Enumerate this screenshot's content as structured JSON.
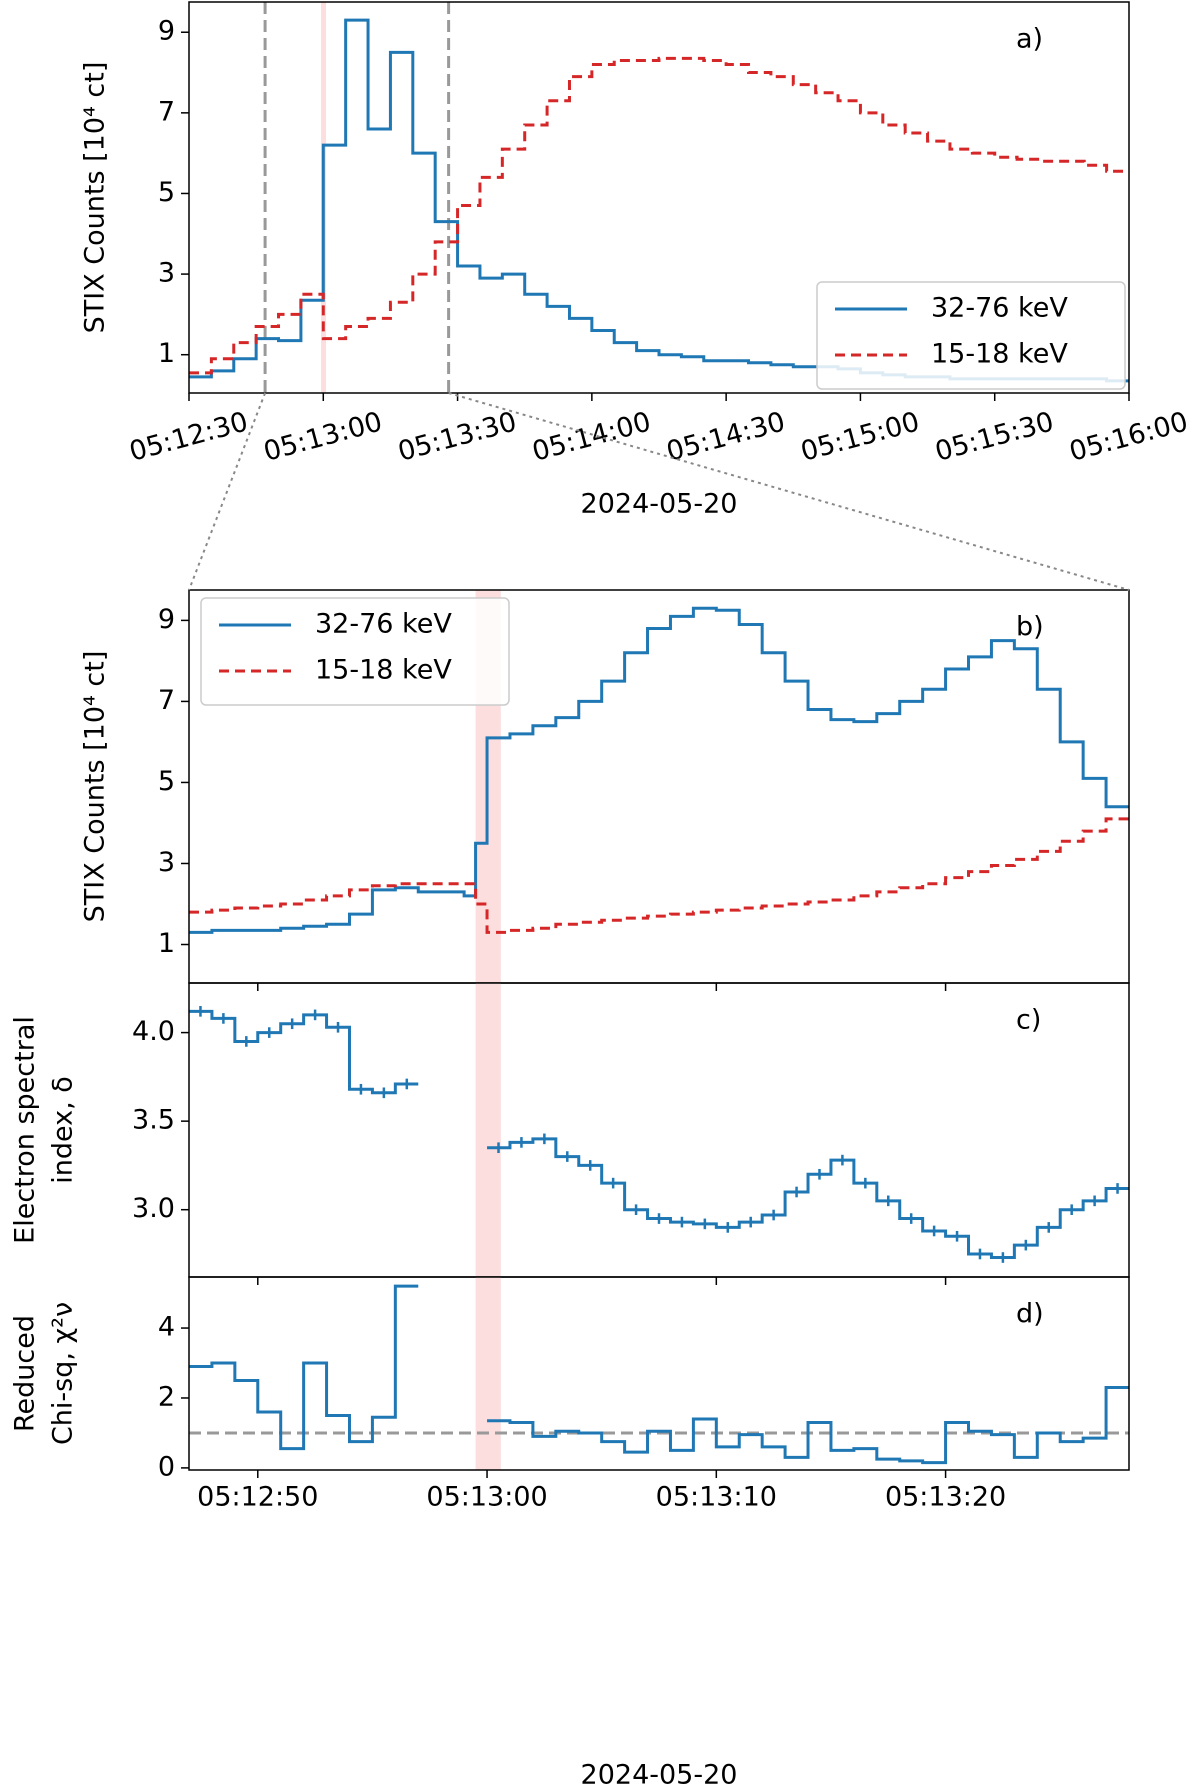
{
  "chart_data": [
    {
      "type": "step",
      "panel_label": "a)",
      "ylabel": "STIX Counts [10⁴ ct]",
      "xlabel": "2024-05-20",
      "x": [
        "05:12:30",
        "05:12:35",
        "05:12:40",
        "05:12:45",
        "05:12:50",
        "05:12:55",
        "05:13:00",
        "05:13:05",
        "05:13:10",
        "05:13:15",
        "05:13:20",
        "05:13:25",
        "05:13:30",
        "05:13:35",
        "05:13:40",
        "05:13:45",
        "05:13:50",
        "05:13:55",
        "05:14:00",
        "05:14:05",
        "05:14:10",
        "05:14:15",
        "05:14:20",
        "05:14:25",
        "05:14:30",
        "05:14:35",
        "05:14:40",
        "05:14:45",
        "05:14:50",
        "05:14:55",
        "05:15:00",
        "05:15:05",
        "05:15:10",
        "05:15:15",
        "05:15:20",
        "05:15:25",
        "05:15:30",
        "05:15:35",
        "05:15:40",
        "05:15:45",
        "05:15:50",
        "05:15:55"
      ],
      "series": [
        {
          "name": "32-76 keV",
          "color": "#1f77b4",
          "dashed": false,
          "values": [
            0.45,
            0.6,
            0.9,
            1.4,
            1.35,
            2.35,
            6.2,
            9.3,
            6.6,
            8.5,
            6.0,
            4.3,
            3.2,
            2.9,
            3.0,
            2.5,
            2.2,
            1.9,
            1.6,
            1.3,
            1.1,
            1.0,
            0.95,
            0.85,
            0.85,
            0.8,
            0.75,
            0.7,
            0.7,
            0.65,
            0.55,
            0.5,
            0.45,
            0.45,
            0.4,
            0.4,
            0.4,
            0.4,
            0.4,
            0.4,
            0.4,
            0.35
          ]
        },
        {
          "name": "15-18 keV",
          "color": "#d62728",
          "dashed": true,
          "values": [
            0.55,
            0.9,
            1.3,
            1.7,
            2.0,
            2.5,
            1.4,
            1.7,
            1.9,
            2.3,
            3.0,
            3.8,
            4.7,
            5.4,
            6.1,
            6.7,
            7.3,
            7.9,
            8.2,
            8.3,
            8.3,
            8.35,
            8.35,
            8.3,
            8.2,
            8.0,
            7.9,
            7.7,
            7.5,
            7.3,
            7.0,
            6.7,
            6.5,
            6.3,
            6.1,
            6.0,
            5.9,
            5.85,
            5.8,
            5.8,
            5.7,
            5.55
          ]
        }
      ],
      "xlim": [
        "05:12:30",
        "05:16:00"
      ],
      "xticks": [
        "05:12:30",
        "05:13:00",
        "05:13:30",
        "05:14:00",
        "05:14:30",
        "05:15:00",
        "05:15:30",
        "05:16:00"
      ],
      "ylim": [
        0.05,
        9.75
      ],
      "yticks": [
        1,
        3,
        5,
        7,
        9
      ],
      "highlight": [
        "05:12:59.5",
        "05:13:00.6"
      ],
      "vlines": [
        "05:12:47",
        "05:13:28"
      ],
      "legend": "lower right"
    },
    {
      "type": "step",
      "panel_label": "b)",
      "ylabel": "STIX Counts [10⁴ ct]",
      "sharex": 3,
      "x": [
        "05:12:47",
        "05:12:48",
        "05:12:49",
        "05:12:50",
        "05:12:51",
        "05:12:52",
        "05:12:53",
        "05:12:54",
        "05:12:55",
        "05:12:56",
        "05:12:57",
        "05:12:58",
        "05:12:59",
        "05:12:59.5",
        "05:13:00",
        "05:13:01",
        "05:13:02",
        "05:13:03",
        "05:13:04",
        "05:13:05",
        "05:13:06",
        "05:13:07",
        "05:13:08",
        "05:13:09",
        "05:13:10",
        "05:13:11",
        "05:13:12",
        "05:13:13",
        "05:13:14",
        "05:13:15",
        "05:13:16",
        "05:13:17",
        "05:13:18",
        "05:13:19",
        "05:13:20",
        "05:13:21",
        "05:13:22",
        "05:13:23",
        "05:13:24",
        "05:13:25",
        "05:13:26",
        "05:13:27"
      ],
      "series": [
        {
          "name": "32-76 keV",
          "color": "#1f77b4",
          "dashed": false,
          "values": [
            1.3,
            1.35,
            1.35,
            1.35,
            1.4,
            1.45,
            1.5,
            1.75,
            2.35,
            2.4,
            2.3,
            2.3,
            2.2,
            3.5,
            6.1,
            6.2,
            6.4,
            6.6,
            7.0,
            7.5,
            8.2,
            8.8,
            9.1,
            9.3,
            9.25,
            8.9,
            8.2,
            7.5,
            6.8,
            6.55,
            6.5,
            6.7,
            7.0,
            7.3,
            7.8,
            8.1,
            8.5,
            8.3,
            7.3,
            6.0,
            5.1,
            4.4
          ]
        },
        {
          "name": "15-18 keV",
          "color": "#d62728",
          "dashed": true,
          "values": [
            1.8,
            1.85,
            1.9,
            1.95,
            2.0,
            2.1,
            2.2,
            2.35,
            2.45,
            2.5,
            2.5,
            2.5,
            2.5,
            2.0,
            1.3,
            1.35,
            1.4,
            1.5,
            1.55,
            1.6,
            1.65,
            1.7,
            1.75,
            1.8,
            1.85,
            1.9,
            1.95,
            2.0,
            2.05,
            2.1,
            2.2,
            2.3,
            2.4,
            2.5,
            2.65,
            2.8,
            2.95,
            3.1,
            3.3,
            3.55,
            3.8,
            4.1
          ]
        }
      ],
      "ylim": [
        0.05,
        9.75
      ],
      "yticks": [
        1,
        3,
        5,
        7,
        9
      ],
      "highlight": [
        "05:12:59.5",
        "05:13:00.6"
      ],
      "legend": "upper left"
    },
    {
      "type": "errorbar_step",
      "panel_label": "c)",
      "ylabel": [
        "Electron spectral",
        "index, δ"
      ],
      "sharex": 3,
      "color": "#1f77b4",
      "x": [
        "05:12:47",
        "05:12:48",
        "05:12:49",
        "05:12:50",
        "05:12:51",
        "05:12:52",
        "05:12:53",
        "05:12:54",
        "05:12:55",
        "05:12:56",
        "05:12:57",
        "05:12:58",
        "05:12:59",
        "05:13:00",
        "05:13:01",
        "05:13:02",
        "05:13:03",
        "05:13:04",
        "05:13:05",
        "05:13:06",
        "05:13:07",
        "05:13:08",
        "05:13:09",
        "05:13:10",
        "05:13:11",
        "05:13:12",
        "05:13:13",
        "05:13:14",
        "05:13:15",
        "05:13:16",
        "05:13:17",
        "05:13:18",
        "05:13:19",
        "05:13:20",
        "05:13:21",
        "05:13:22",
        "05:13:23",
        "05:13:24",
        "05:13:25",
        "05:13:26",
        "05:13:27"
      ],
      "values": [
        4.12,
        4.08,
        3.95,
        4.0,
        4.05,
        4.1,
        4.03,
        3.68,
        3.66,
        3.71,
        null,
        null,
        null,
        3.35,
        3.38,
        3.4,
        3.3,
        3.25,
        3.15,
        3.0,
        2.95,
        2.93,
        2.92,
        2.9,
        2.93,
        2.97,
        3.1,
        3.2,
        3.28,
        3.15,
        3.05,
        2.95,
        2.88,
        2.85,
        2.75,
        2.73,
        2.8,
        2.9,
        3.0,
        3.05,
        3.12
      ],
      "errors": [
        0.03,
        0.03,
        0.03,
        0.03,
        0.03,
        0.03,
        0.03,
        0.03,
        0.03,
        0.03,
        null,
        null,
        null,
        0.03,
        0.03,
        0.03,
        0.03,
        0.03,
        0.03,
        0.03,
        0.03,
        0.03,
        0.03,
        0.03,
        0.03,
        0.03,
        0.03,
        0.03,
        0.03,
        0.03,
        0.03,
        0.03,
        0.03,
        0.03,
        0.03,
        0.03,
        0.03,
        0.03,
        0.03,
        0.03,
        0.03
      ],
      "ylim": [
        2.62,
        4.28
      ],
      "yticks": [
        {
          "value": 4.0,
          "label": "4.0"
        },
        3.5,
        {
          "value": 3.0,
          "label": "3.0"
        }
      ],
      "highlight": [
        "05:12:59.5",
        "05:13:00.6"
      ]
    },
    {
      "type": "step",
      "panel_label": "d)",
      "ylabel": [
        "Reduced",
        "Chi-sq, χ²ν"
      ],
      "xlabel": "2024-05-20",
      "x": [
        "05:12:47",
        "05:12:48",
        "05:12:49",
        "05:12:50",
        "05:12:51",
        "05:12:52",
        "05:12:53",
        "05:12:54",
        "05:12:55",
        "05:12:56",
        "05:12:57",
        "05:12:58",
        "05:12:59",
        "05:13:00",
        "05:13:01",
        "05:13:02",
        "05:13:03",
        "05:13:04",
        "05:13:05",
        "05:13:06",
        "05:13:07",
        "05:13:08",
        "05:13:09",
        "05:13:10",
        "05:13:11",
        "05:13:12",
        "05:13:13",
        "05:13:14",
        "05:13:15",
        "05:13:16",
        "05:13:17",
        "05:13:18",
        "05:13:19",
        "05:13:20",
        "05:13:21",
        "05:13:22",
        "05:13:23",
        "05:13:24",
        "05:13:25",
        "05:13:26",
        "05:13:27"
      ],
      "series": [
        {
          "color": "#1f77b4",
          "dashed": false,
          "values": [
            2.9,
            3.0,
            2.5,
            1.6,
            0.55,
            3.0,
            1.5,
            0.75,
            1.45,
            5.2,
            null,
            null,
            null,
            1.35,
            1.3,
            0.9,
            1.05,
            1.0,
            0.75,
            0.45,
            1.05,
            0.5,
            1.4,
            0.6,
            0.95,
            0.6,
            0.3,
            1.3,
            0.5,
            0.55,
            0.25,
            0.2,
            0.15,
            1.3,
            1.05,
            0.95,
            0.3,
            1.0,
            0.75,
            0.85,
            2.3
          ]
        }
      ],
      "xlim": [
        "05:12:47",
        "05:13:28"
      ],
      "xticks": [
        "05:12:50",
        "05:13:00",
        "05:13:10",
        "05:13:20"
      ],
      "ylim": [
        -0.06,
        5.46
      ],
      "yticks": [
        0,
        2,
        4
      ],
      "reference_line": 1,
      "highlight": [
        "05:12:59.5",
        "05:13:00.6"
      ]
    }
  ]
}
